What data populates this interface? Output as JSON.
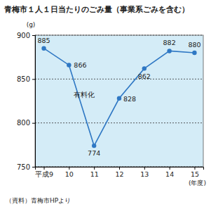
{
  "chart_data": {
    "type": "line",
    "title": "青梅市１人１日当たりのごみ量（事業系ごみを含む）",
    "y_label": "(g)",
    "x_label": "(年度)",
    "source": "（資料）青梅市HPより",
    "annotations": [
      "有料化"
    ],
    "categories": [
      "平成9",
      "10",
      "11",
      "12",
      "13",
      "14",
      "15"
    ],
    "values": [
      885,
      866,
      774,
      828,
      862,
      882,
      880
    ],
    "color": "#2f78c4",
    "marker": "circle",
    "ylim": [
      750,
      900
    ],
    "yticks": [
      750,
      800,
      850,
      900
    ],
    "grid": true,
    "data_labels": true
  }
}
